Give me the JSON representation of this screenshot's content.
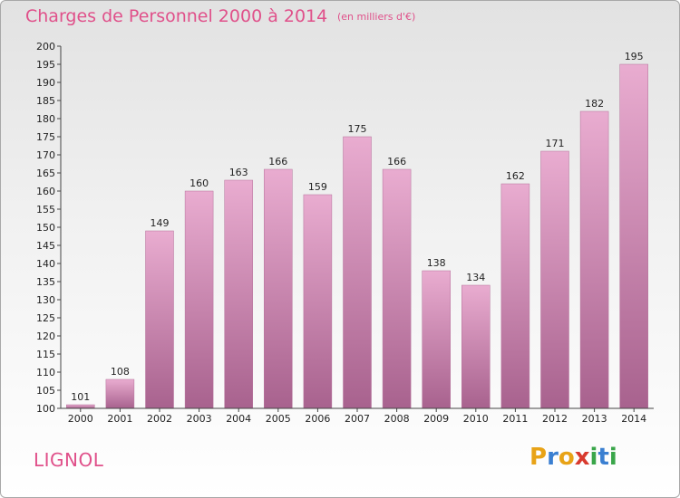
{
  "header": {
    "title": "Charges de Personnel 2000 à 2014",
    "subtitle": "(en milliers d'€)"
  },
  "commune": "LIGNOL",
  "logo": {
    "text": "Proxiti",
    "letters": [
      {
        "char": "P",
        "color": "#e8a317"
      },
      {
        "char": "r",
        "color": "#3a7fd1"
      },
      {
        "char": "o",
        "color": "#e8a317"
      },
      {
        "char": "x",
        "color": "#d83a2e"
      },
      {
        "char": "i",
        "color": "#3aa64a"
      },
      {
        "char": "t",
        "color": "#3a7fd1"
      },
      {
        "char": "i",
        "color": "#3aa64a"
      }
    ]
  },
  "colors": {
    "accent": "#e0508a",
    "bar_top": "#e9acd0",
    "bar_bottom": "#a8628e",
    "axis": "#444444"
  },
  "chart_data": {
    "type": "bar",
    "title": "Charges de Personnel 2000 à 2014",
    "subtitle": "(en milliers d'€)",
    "categories": [
      "2000",
      "2001",
      "2002",
      "2003",
      "2004",
      "2005",
      "2006",
      "2007",
      "2008",
      "2009",
      "2010",
      "2011",
      "2012",
      "2013",
      "2014"
    ],
    "values": [
      101,
      108,
      149,
      160,
      163,
      166,
      159,
      175,
      166,
      138,
      134,
      162,
      171,
      182,
      195
    ],
    "ylim": [
      100,
      200
    ],
    "ytick_step": 5,
    "grid": false,
    "data_labels": true,
    "xlabel": "",
    "ylabel": ""
  }
}
